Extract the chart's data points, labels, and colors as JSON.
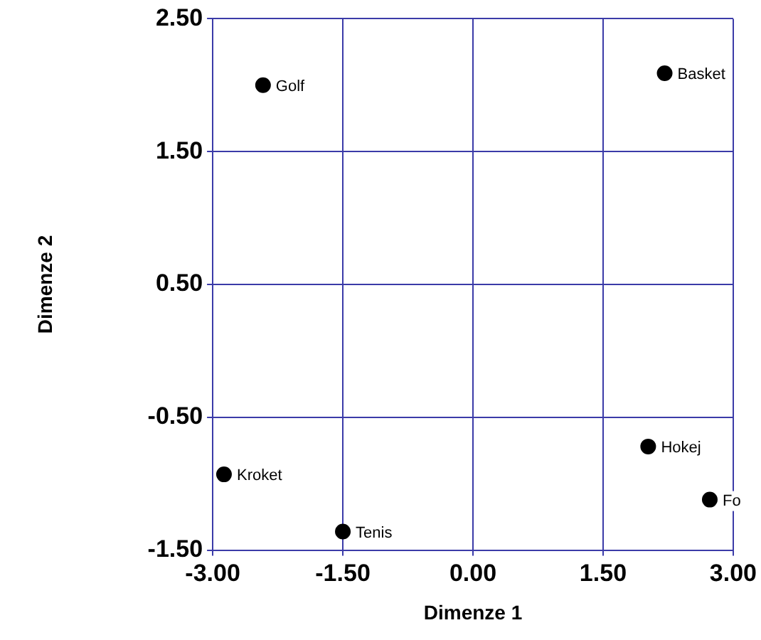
{
  "chart_data": {
    "type": "scatter",
    "xlabel": "Dimenze 1",
    "ylabel": "Dimenze 2",
    "x": [
      -2.42,
      2.21,
      -2.87,
      -1.5,
      2.02,
      2.73
    ],
    "values": [
      2.0,
      2.09,
      -0.93,
      -1.36,
      -0.72,
      -1.12
    ],
    "color": "#000000",
    "marker": "circle",
    "grid": true,
    "legend": false,
    "xlim": [
      -3,
      3
    ],
    "ylim": [
      -1.5,
      2.5
    ],
    "xticks": [
      {
        "value": -3,
        "label": "-3.00"
      },
      {
        "value": -1.5,
        "label": "-1.50"
      },
      {
        "value": 0,
        "label": "0.00"
      },
      {
        "value": 1.5,
        "label": "1.50"
      },
      {
        "value": 3,
        "label": "3.00"
      }
    ],
    "yticks": [
      {
        "value": -1.5,
        "label": "-1.50"
      },
      {
        "value": -0.5,
        "label": "-0.50"
      },
      {
        "value": 0.5,
        "label": "0.50"
      },
      {
        "value": 1.5,
        "label": "1.50"
      },
      {
        "value": 2.5,
        "label": "2.50"
      }
    ],
    "annotations": [
      {
        "text": "Golf",
        "x": -2.42,
        "y": 2.0
      },
      {
        "text": "Basket",
        "x": 2.21,
        "y": 2.09
      },
      {
        "text": "Kroket",
        "x": -2.87,
        "y": -0.93
      },
      {
        "text": "Tenis",
        "x": -1.5,
        "y": -1.36
      },
      {
        "text": "Hokej",
        "x": 2.02,
        "y": -0.72
      },
      {
        "text": "Fo",
        "x": 2.73,
        "y": -1.12
      }
    ]
  }
}
